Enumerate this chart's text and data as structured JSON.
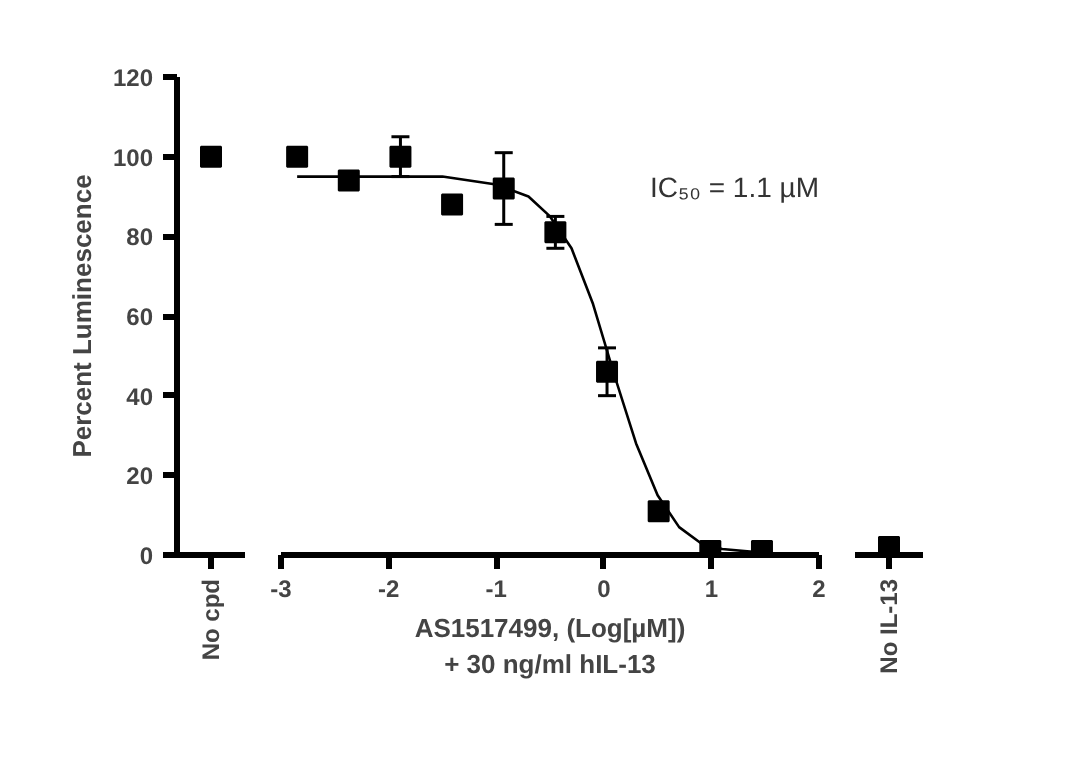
{
  "chart_data": [
    {
      "type": "scatter",
      "ylabel": "Percent Luminescence",
      "categories": [
        "No cpd"
      ],
      "marker": "square",
      "ylim": [
        0,
        120
      ],
      "yticks": [
        0,
        20,
        40,
        60,
        80,
        100,
        120
      ],
      "series": [
        {
          "color": "#000000",
          "values": [
            100
          ]
        }
      ]
    },
    {
      "type": "scatter",
      "xlabel": "AS1517499, (Log[µM])\n+ 30 ng/ml hIL-13",
      "x": [
        -2.85,
        -2.37,
        -1.89,
        -1.41,
        -0.93,
        -0.45,
        0.03,
        0.51,
        0.99,
        1.47
      ],
      "xlim": [
        -3,
        2
      ],
      "xticks": [
        -3,
        -2,
        -1,
        0,
        1,
        2
      ],
      "ylim": [
        0,
        120
      ],
      "tick_labels": "x",
      "annotations": [
        "IC₅₀ = 1.1 µM"
      ],
      "series": [
        {
          "color": "#000000",
          "marker": "square",
          "values": [
            100,
            94,
            100,
            88,
            92,
            81,
            46,
            11,
            1,
            1
          ],
          "errors": [
            null,
            null,
            5,
            null,
            9,
            4,
            6,
            2,
            null,
            null
          ]
        },
        {
          "type": "line",
          "color": "#000000",
          "x": [
            -2.85,
            -2.0,
            -1.5,
            -1.0,
            -0.7,
            -0.5,
            -0.3,
            -0.1,
            0.1,
            0.3,
            0.5,
            0.7,
            0.9,
            1.1,
            1.5
          ],
          "values": [
            95,
            95,
            95,
            93,
            90,
            85,
            77,
            63,
            45,
            28,
            15,
            7,
            3,
            1.5,
            0.5
          ]
        }
      ]
    },
    {
      "type": "scatter",
      "categories": [
        "No IL-13"
      ],
      "marker": "square",
      "ylim": [
        0,
        120
      ],
      "tick_labels": "x",
      "series": [
        {
          "color": "#000000",
          "values": [
            2
          ]
        }
      ]
    }
  ]
}
